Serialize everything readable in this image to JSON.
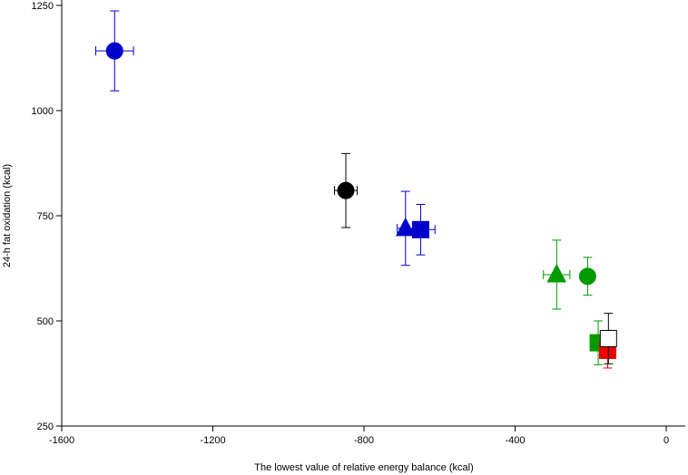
{
  "chart_data": {
    "type": "scatter",
    "title": "",
    "xlabel": "The lowest value of relative energy balance (kcal)",
    "ylabel": "24-h fat oxidation (kcal)",
    "xlim": [
      -1600,
      0
    ],
    "ylim": [
      250,
      1250
    ],
    "x_ticks": [
      -1600,
      -1200,
      -800,
      -400,
      0
    ],
    "y_ticks": [
      250,
      500,
      750,
      1000,
      1250
    ],
    "grid": false,
    "legend": "none",
    "points": [
      {
        "x": -1460,
        "y": 1142,
        "x_err": 50,
        "y_err": 95,
        "marker": "circle",
        "color": "#0000cc",
        "edge": "#0000cc"
      },
      {
        "x": -848,
        "y": 810,
        "x_err": 30,
        "y_err": 88,
        "marker": "circle",
        "color": "#000000",
        "edge": "#000000"
      },
      {
        "x": -690,
        "y": 720,
        "x_err": 22,
        "y_err": 88,
        "marker": "triangle",
        "color": "#0000cc",
        "edge": "#0000cc"
      },
      {
        "x": -650,
        "y": 717,
        "x_err": 38,
        "y_err": 60,
        "marker": "square",
        "color": "#0000cc",
        "edge": "#0000cc"
      },
      {
        "x": -290,
        "y": 610,
        "x_err": 35,
        "y_err": 82,
        "marker": "triangle",
        "color": "#009900",
        "edge": "#009900"
      },
      {
        "x": -208,
        "y": 606,
        "x_err": 0,
        "y_err": 45,
        "marker": "circle",
        "color": "#009900",
        "edge": "#009900"
      },
      {
        "x": -180,
        "y": 448,
        "x_err": 0,
        "y_err": 52,
        "marker": "square",
        "color": "#009900",
        "edge": "#009900"
      },
      {
        "x": -155,
        "y": 430,
        "x_err": 0,
        "y_err": 42,
        "marker": "square",
        "color": "#ee0000",
        "edge": "#ee0000"
      },
      {
        "x": -153,
        "y": 458,
        "x_err": 0,
        "y_err": 60,
        "marker": "square",
        "color": "#ffffff",
        "edge": "#000000"
      }
    ]
  }
}
